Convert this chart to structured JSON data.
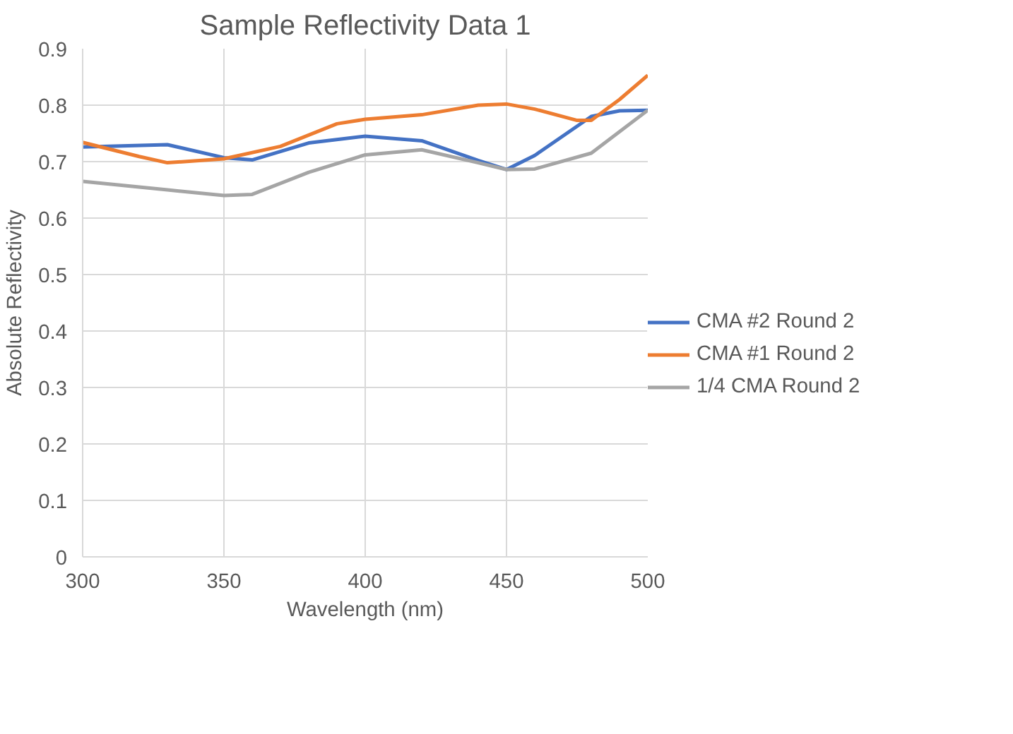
{
  "chart_data": {
    "type": "line",
    "title": "Sample Reflectivity Data 1",
    "xlabel": "Wavelength (nm)",
    "ylabel": "Absolute Reflectivity",
    "xlim": [
      300,
      500
    ],
    "xticks": [
      300,
      350,
      400,
      450,
      500
    ],
    "ylim": [
      0,
      0.9
    ],
    "yticks": [
      0,
      0.1,
      0.2,
      0.3,
      0.4,
      0.5,
      0.6,
      0.7,
      0.8,
      0.9
    ],
    "grid": true,
    "legend": "right",
    "series": [
      {
        "name": "CMA #2 Round 2",
        "color": "#4472c4",
        "x": [
          300,
          330,
          350,
          360,
          380,
          400,
          420,
          440,
          450,
          460,
          480,
          490,
          500
        ],
        "values": [
          0.726,
          0.73,
          0.707,
          0.703,
          0.733,
          0.745,
          0.737,
          0.702,
          0.686,
          0.711,
          0.78,
          0.79,
          0.791
        ]
      },
      {
        "name": "CMA #1 Round 2",
        "color": "#ed7d31",
        "x": [
          300,
          320,
          330,
          350,
          370,
          390,
          400,
          420,
          440,
          450,
          460,
          475,
          480,
          490,
          500
        ],
        "values": [
          0.734,
          0.709,
          0.698,
          0.705,
          0.727,
          0.767,
          0.775,
          0.783,
          0.8,
          0.802,
          0.793,
          0.773,
          0.773,
          0.81,
          0.853
        ]
      },
      {
        "name": "1/4 CMA Round 2",
        "color": "#a5a5a5",
        "x": [
          300,
          330,
          350,
          360,
          380,
          400,
          420,
          440,
          450,
          460,
          480,
          500
        ],
        "values": [
          0.665,
          0.65,
          0.64,
          0.642,
          0.681,
          0.712,
          0.721,
          0.698,
          0.686,
          0.687,
          0.715,
          0.791
        ]
      }
    ]
  }
}
